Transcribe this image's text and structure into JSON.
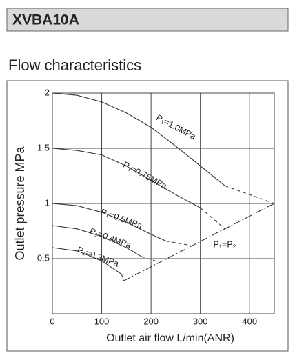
{
  "header": {
    "title": "XVBA10A"
  },
  "section_title": "Flow characteristics",
  "chart_data": {
    "type": "line",
    "xlabel": "Outlet air flow L/min(ANR)",
    "ylabel": "Outlet pressure MPa",
    "xlim": [
      0,
      450
    ],
    "ylim": [
      0,
      2
    ],
    "xticks": [
      0,
      100,
      200,
      300,
      400
    ],
    "yticks": [
      0.5,
      1,
      1.5,
      2
    ],
    "grid": true,
    "color": "#333333",
    "series": [
      {
        "name": "P₁=1.0MPa",
        "x": [
          0,
          50,
          100,
          150,
          200,
          250,
          300,
          350
        ],
        "values": [
          2,
          1.98,
          1.92,
          1.82,
          1.69,
          1.52,
          1.34,
          1.16
        ],
        "dashed_x": [
          350,
          450
        ],
        "dashed_values": [
          1.16,
          1.0
        ]
      },
      {
        "name": "P₁=0.75MPa",
        "x": [
          0,
          50,
          100,
          150,
          200,
          250,
          300
        ],
        "values": [
          1.5,
          1.48,
          1.44,
          1.34,
          1.21,
          1.08,
          0.96
        ],
        "dashed_x": [
          300,
          350
        ],
        "dashed_values": [
          0.96,
          0.77
        ]
      },
      {
        "name": "P₁=0.5MPa",
        "x": [
          0,
          50,
          100,
          150,
          200,
          230
        ],
        "values": [
          1.0,
          0.98,
          0.92,
          0.83,
          0.72,
          0.66
        ],
        "dashed_x": [
          230,
          280
        ],
        "dashed_values": [
          0.66,
          0.62
        ]
      },
      {
        "name": "P₁=0.4MPa",
        "x": [
          0,
          50,
          100,
          150,
          180
        ],
        "values": [
          0.8,
          0.77,
          0.7,
          0.6,
          0.52
        ],
        "dashed_x": [
          180,
          215
        ],
        "dashed_values": [
          0.52,
          0.47
        ]
      },
      {
        "name": "P₁=0.3MPa",
        "x": [
          0,
          50,
          100,
          140
        ],
        "values": [
          0.6,
          0.57,
          0.48,
          0.36
        ],
        "dashed_x": [
          140,
          145
        ],
        "dashed_values": [
          0.36,
          0.3
        ]
      },
      {
        "name": "P₁=P₂",
        "style": "dashdot",
        "x": [
          145,
          450
        ],
        "values": [
          0.3,
          1.0
        ]
      }
    ]
  }
}
